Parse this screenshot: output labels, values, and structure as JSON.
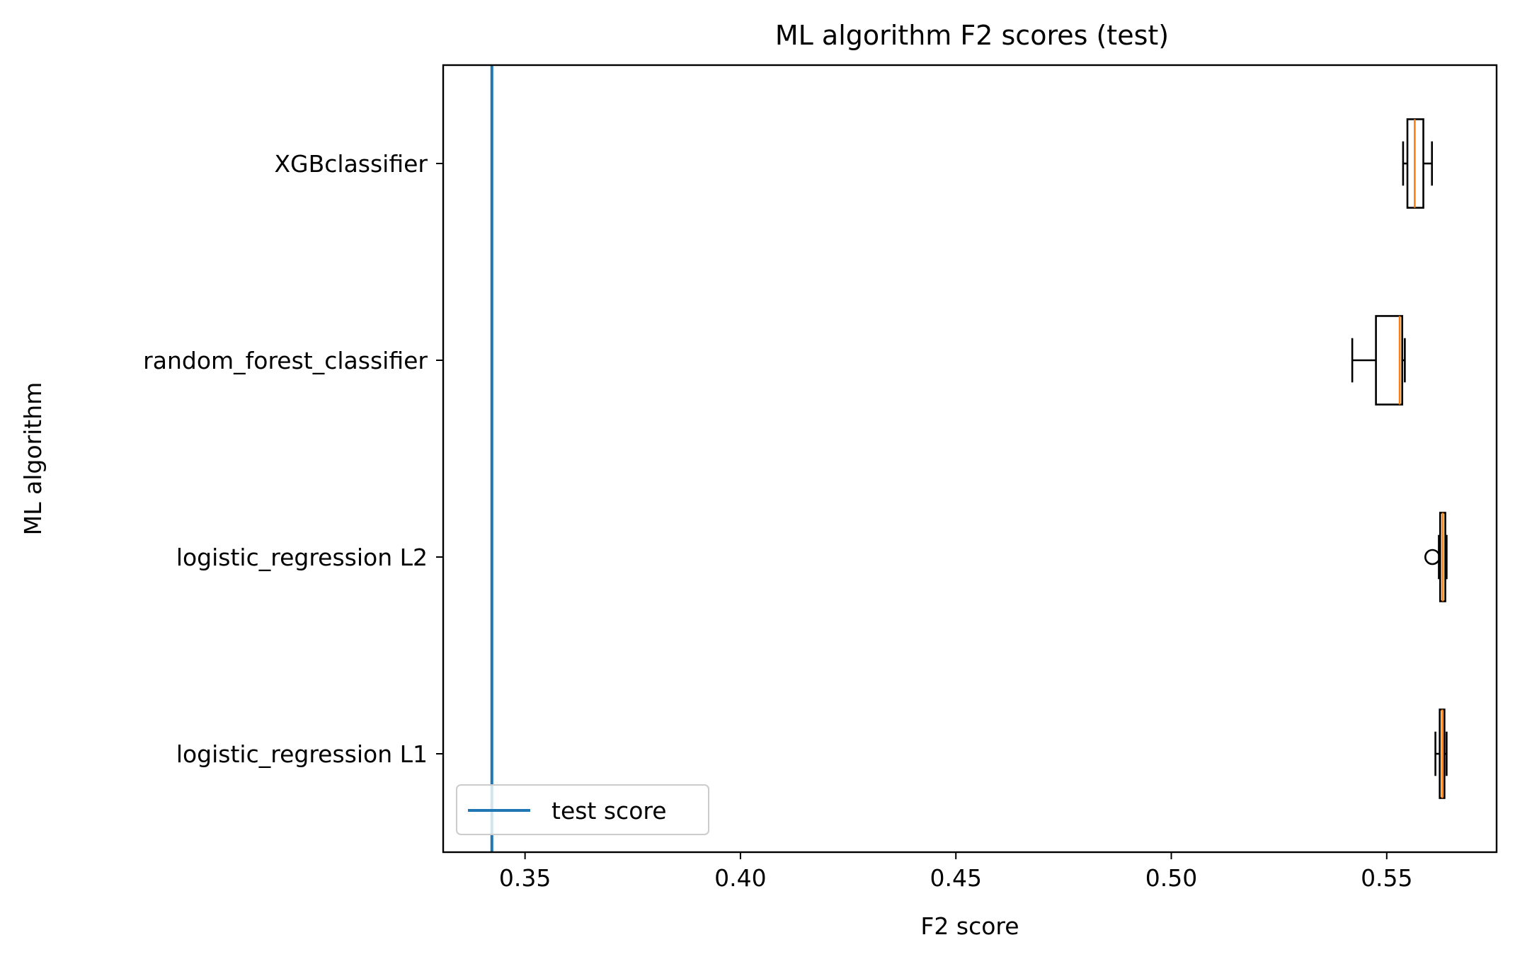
{
  "chart_data": {
    "type": "boxplot",
    "orientation": "horizontal",
    "title": "ML algorithm F2 scores (test)",
    "xlabel": "F2 score",
    "ylabel": "ML algorithm",
    "xlim": [
      0.331,
      0.5755
    ],
    "xticks": [
      0.35,
      0.4,
      0.45,
      0.5,
      0.55
    ],
    "xtick_labels": [
      "0.35",
      "0.40",
      "0.45",
      "0.50",
      "0.55"
    ],
    "categories": [
      "logistic_regression L1",
      "logistic_regression L2",
      "random_forest_classifier",
      "XGBclassifier"
    ],
    "boxes": [
      {
        "name": "logistic_regression L1",
        "whisker_low": 0.5613,
        "q1": 0.5623,
        "median": 0.5629,
        "q3": 0.5634,
        "whisker_high": 0.5639,
        "outliers": []
      },
      {
        "name": "logistic_regression L2",
        "whisker_low": 0.5621,
        "q1": 0.5624,
        "median": 0.563,
        "q3": 0.5636,
        "whisker_high": 0.5639,
        "outliers": [
          0.5606
        ]
      },
      {
        "name": "random_forest_classifier",
        "whisker_low": 0.542,
        "q1": 0.5475,
        "median": 0.553,
        "q3": 0.5536,
        "whisker_high": 0.5542,
        "outliers": []
      },
      {
        "name": "XGBclassifier",
        "whisker_low": 0.5538,
        "q1": 0.5548,
        "median": 0.5565,
        "q3": 0.5585,
        "whisker_high": 0.5605,
        "outliers": []
      }
    ],
    "reference_line": {
      "name": "test score",
      "value": 0.3423,
      "color": "#1f77b4"
    },
    "median_color": "#ff7f0e",
    "box_color": "#000000",
    "legend": {
      "position": "lower-left",
      "entries": [
        "test score"
      ]
    },
    "grid": false
  }
}
